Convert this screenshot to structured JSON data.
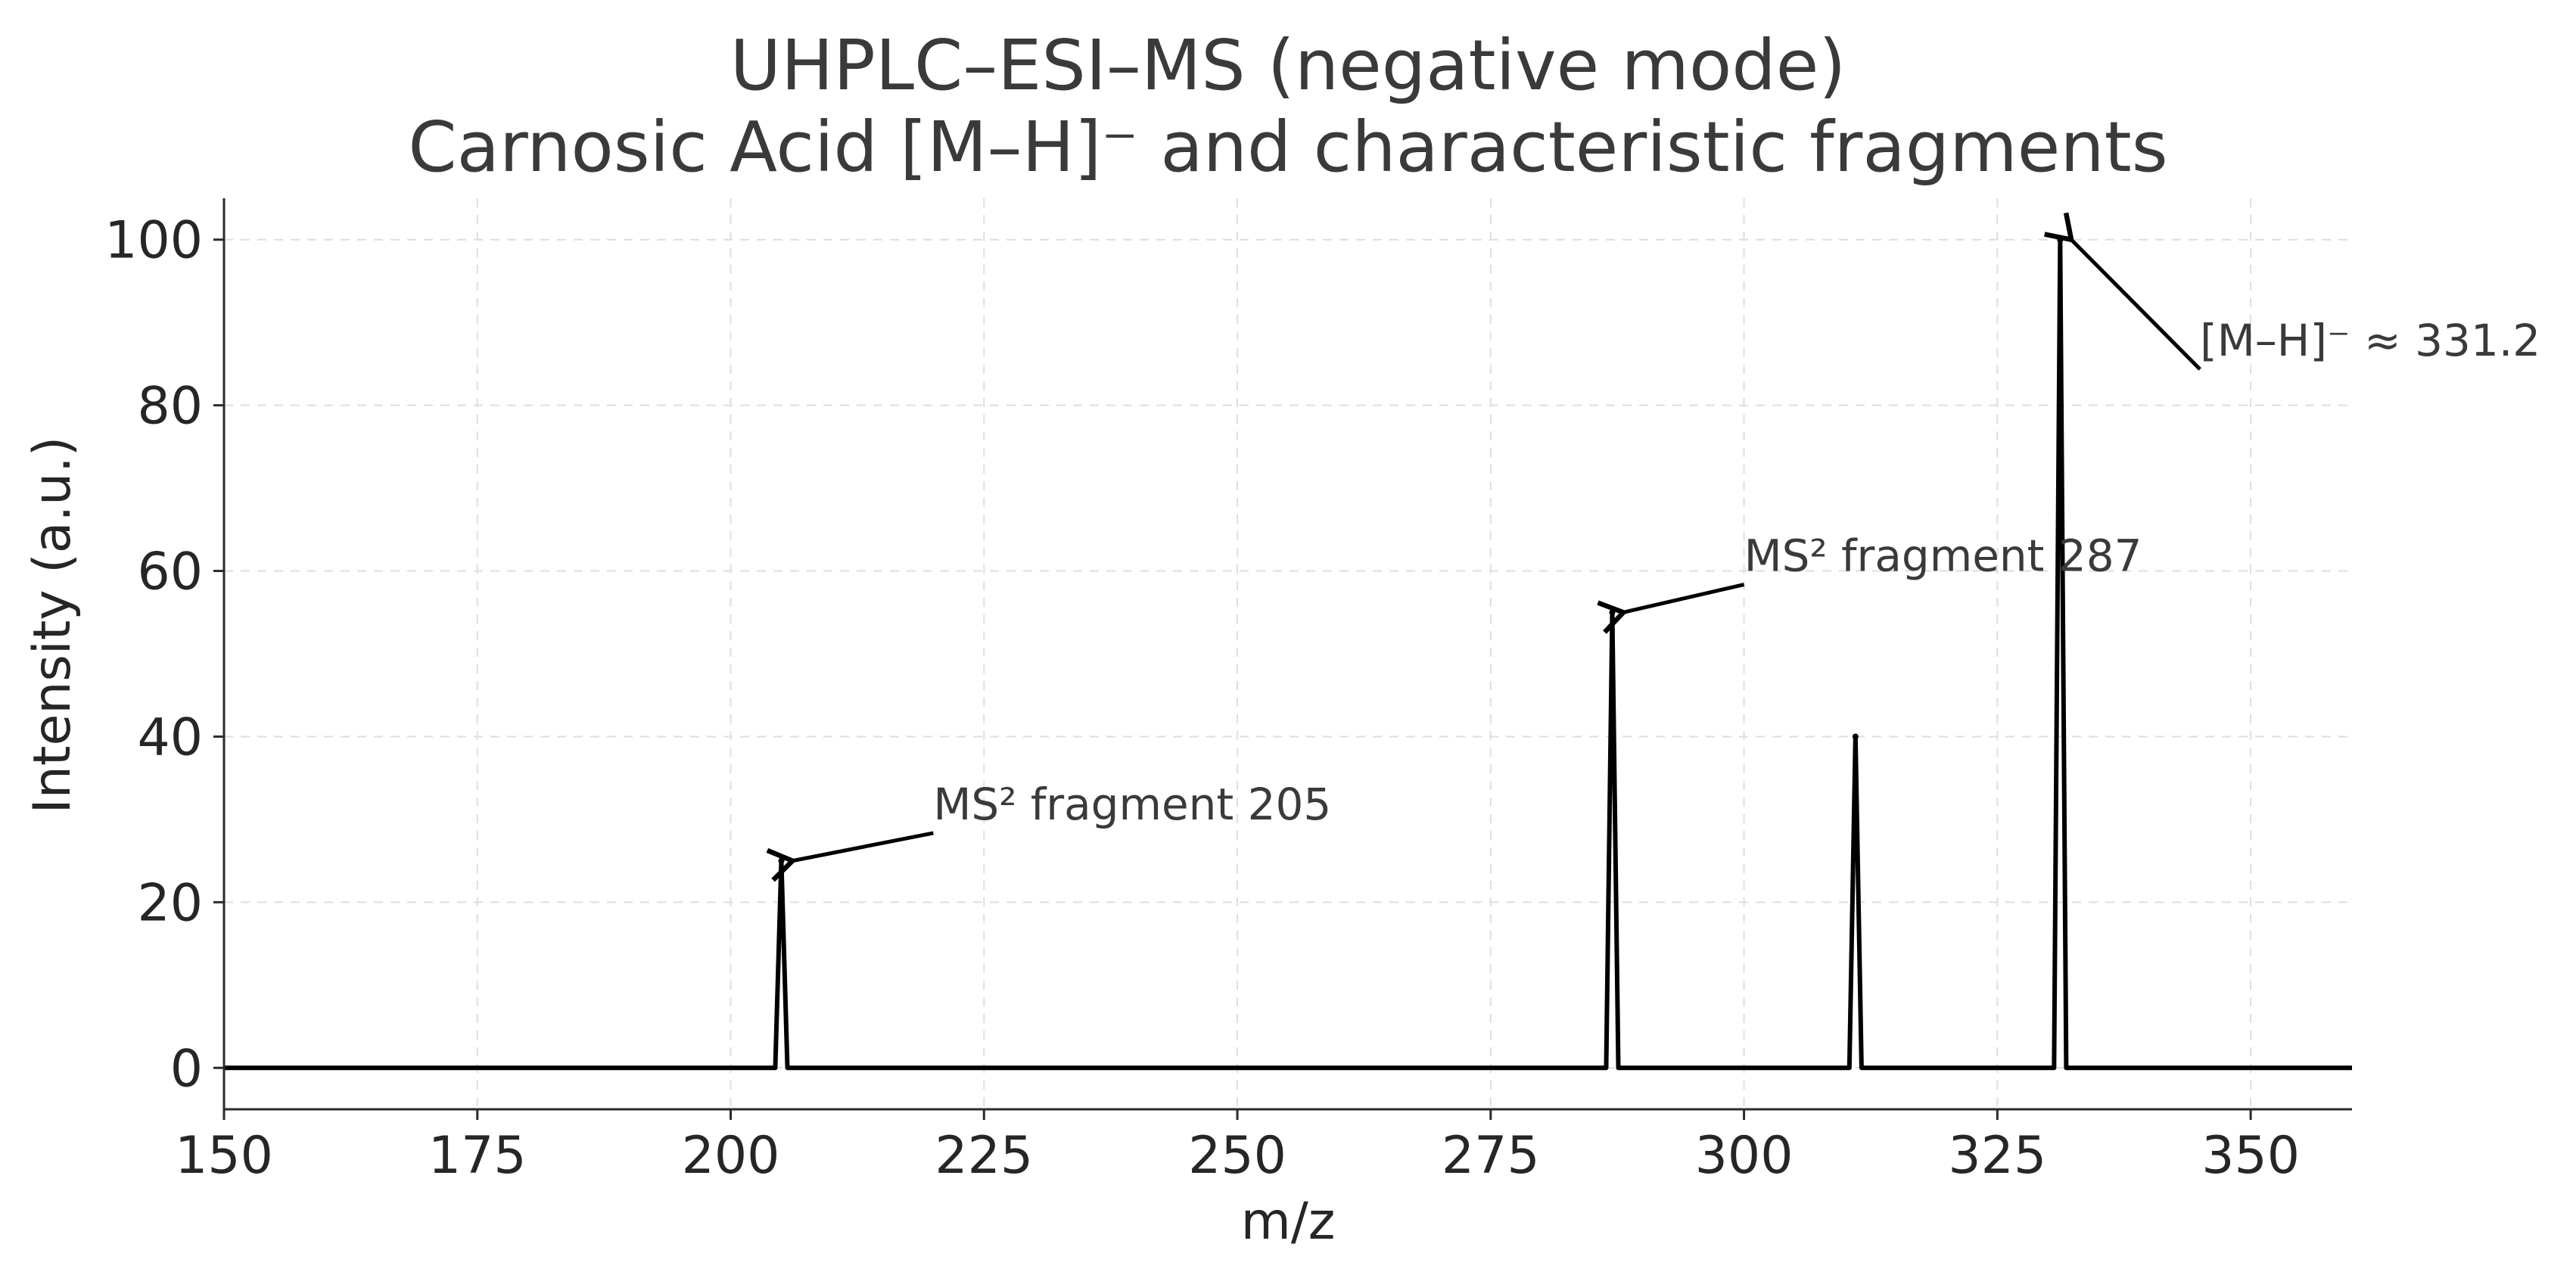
{
  "chart_data": {
    "type": "line",
    "title_line1": "UHPLC–ESI–MS (negative mode)",
    "title_line2": "Carnosic Acid [M–H]⁻ and characteristic fragments",
    "xlabel": "m/z",
    "ylabel": "Intensity (a.u.)",
    "xlim": [
      150,
      360
    ],
    "ylim": [
      -5,
      105
    ],
    "xticks": [
      150,
      175,
      200,
      225,
      250,
      275,
      300,
      325,
      350
    ],
    "yticks": [
      0,
      20,
      40,
      60,
      80,
      100
    ],
    "grid": true,
    "peak_halfwidth": 0.6,
    "peaks": [
      {
        "mz": 205,
        "intensity": 25
      },
      {
        "mz": 287,
        "intensity": 55
      },
      {
        "mz": 311,
        "intensity": 40
      },
      {
        "mz": 331.2,
        "intensity": 100
      }
    ],
    "annotations": [
      {
        "text": "MS² fragment 205",
        "xy": [
          205.8,
          25
        ],
        "xytext": [
          220,
          30
        ]
      },
      {
        "text": "MS² fragment 287",
        "xy": [
          287.8,
          55
        ],
        "xytext": [
          300,
          60
        ]
      },
      {
        "text": "[M–H]⁻ ≈ 331.2",
        "xy": [
          332,
          100
        ],
        "xytext": [
          345,
          86
        ]
      }
    ]
  }
}
